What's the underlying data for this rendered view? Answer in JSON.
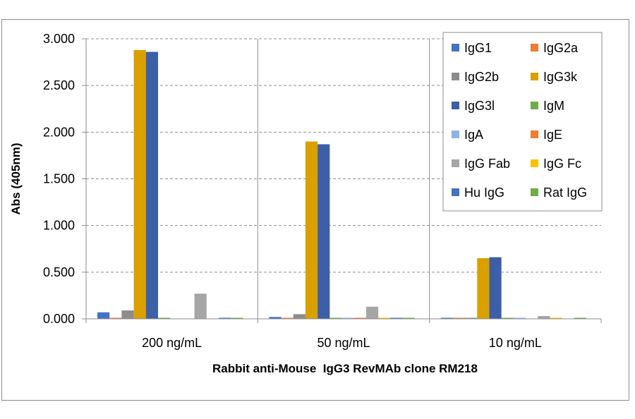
{
  "chart_data": {
    "type": "bar",
    "title": "",
    "xlabel": "Rabbit anti-Mouse  IgG3 RevMAb clone RM218",
    "ylabel": "Abs (405nm)",
    "ylim": [
      0,
      3.0
    ],
    "yticks": [
      "0.000",
      "0.500",
      "1.000",
      "1.500",
      "2.000",
      "2.500",
      "3.000"
    ],
    "grid": true,
    "legend_position": "top-right",
    "categories": [
      "200 ng/mL",
      "50 ng/mL",
      "10 ng/mL"
    ],
    "series": [
      {
        "name": "IgG1",
        "color": "#4472c4",
        "values": [
          0.07,
          0.02,
          0.01
        ]
      },
      {
        "name": "IgG2a",
        "color": "#ed7d31",
        "values": [
          0.01,
          0.01,
          0.01
        ]
      },
      {
        "name": "IgG2b",
        "color": "#8c8c8c",
        "values": [
          0.09,
          0.05,
          0.01
        ]
      },
      {
        "name": "IgG3k",
        "color": "#d9a000",
        "values": [
          2.88,
          1.9,
          0.65
        ]
      },
      {
        "name": "IgG3l",
        "color": "#3c5fa8",
        "values": [
          2.86,
          1.87,
          0.66
        ]
      },
      {
        "name": "IgM",
        "color": "#70ad47",
        "values": [
          0.01,
          0.01,
          0.01
        ]
      },
      {
        "name": "IgA",
        "color": "#8fb3e6",
        "values": [
          0.0,
          0.01,
          0.01
        ]
      },
      {
        "name": "IgE",
        "color": "#ed7d31",
        "values": [
          0.0,
          0.01,
          0.0
        ]
      },
      {
        "name": "IgG Fab",
        "color": "#a6a6a6",
        "values": [
          0.27,
          0.13,
          0.03
        ]
      },
      {
        "name": "IgG Fc",
        "color": "#ffc000",
        "values": [
          0.0,
          0.01,
          0.01
        ]
      },
      {
        "name": "Hu IgG",
        "color": "#4472c4",
        "values": [
          0.01,
          0.01,
          0.0
        ]
      },
      {
        "name": "Rat IgG",
        "color": "#70ad47",
        "values": [
          0.01,
          0.01,
          0.01
        ]
      }
    ]
  }
}
